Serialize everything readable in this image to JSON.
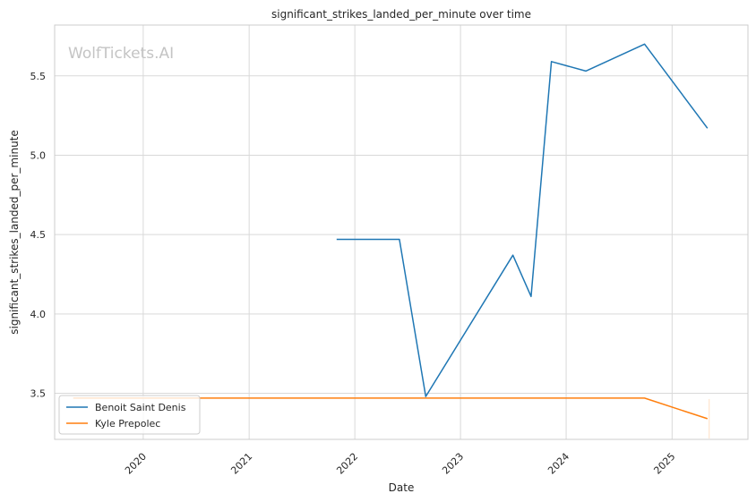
{
  "chart_data": {
    "type": "line",
    "title": "significant_strikes_landed_per_minute over time",
    "xlabel": "Date",
    "ylabel": "significant_strikes_landed_per_minute",
    "watermark": "WolfTickets.AI",
    "x_ticks": [
      "2020",
      "2021",
      "2022",
      "2023",
      "2024",
      "2025"
    ],
    "y_ticks": [
      "3.5",
      "4.0",
      "4.5",
      "5.0",
      "5.5"
    ],
    "xlim": [
      "2019-03-01",
      "2025-09-20"
    ],
    "ylim": [
      3.21,
      5.82
    ],
    "grid": true,
    "legend_position": "lower-left",
    "series": [
      {
        "name": "Benoit Saint Denis",
        "color": "#1f77b4",
        "points": [
          {
            "x": "2021-10-30",
            "y": 4.47
          },
          {
            "x": "2022-06-04",
            "y": 4.47
          },
          {
            "x": "2022-09-03",
            "y": 3.48
          },
          {
            "x": "2023-07-01",
            "y": 4.37
          },
          {
            "x": "2023-09-02",
            "y": 4.11
          },
          {
            "x": "2023-11-11",
            "y": 5.59
          },
          {
            "x": "2024-03-09",
            "y": 5.53
          },
          {
            "x": "2024-09-28",
            "y": 5.7
          },
          {
            "x": "2025-05-03",
            "y": 5.17
          }
        ]
      },
      {
        "name": "Kyle Prepolec",
        "color": "#ff7f0e",
        "points": [
          {
            "x": "2019-05-04",
            "y": 3.47
          },
          {
            "x": "2024-09-28",
            "y": 3.47
          },
          {
            "x": "2025-05-03",
            "y": 3.34
          }
        ]
      }
    ]
  }
}
